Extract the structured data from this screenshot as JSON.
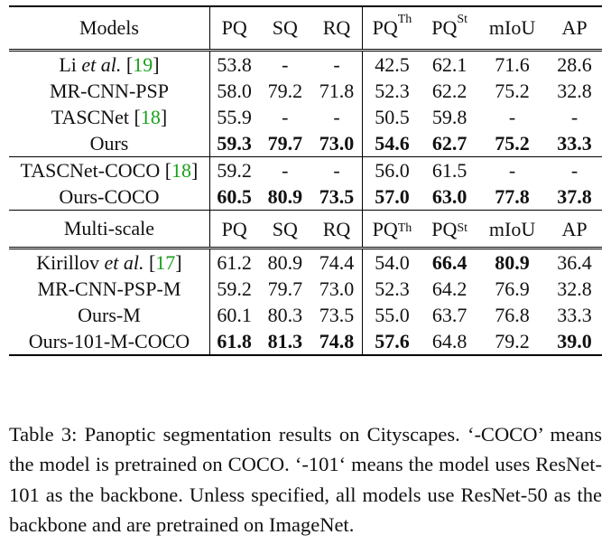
{
  "header": {
    "models": "Models",
    "pq": "PQ",
    "sq": "SQ",
    "rq": "RQ",
    "pq_th": "PQ",
    "th_sup": "Th",
    "pq_st": "PQ",
    "st_sup": "St",
    "miou": "mIoU",
    "ap": "AP"
  },
  "multiscale_header": {
    "models": "Multi-scale",
    "pq": "PQ",
    "sq": "SQ",
    "rq": "RQ",
    "pq_th": "PQ",
    "th_sup": "Th",
    "pq_st": "PQ",
    "st_sup": "St",
    "miou": "mIoU",
    "ap": "AP"
  },
  "rows": {
    "li": {
      "name": "Li",
      "etal": "et al.",
      "ref": "19",
      "pq": "53.8",
      "sq": "-",
      "rq": "-",
      "pq_th": "42.5",
      "pq_st": "62.1",
      "miou": "71.6",
      "ap": "28.6"
    },
    "mrcnnpsp": {
      "name": "MR-CNN-PSP",
      "pq": "58.0",
      "sq": "79.2",
      "rq": "71.8",
      "pq_th": "52.3",
      "pq_st": "62.2",
      "miou": "75.2",
      "ap": "32.8"
    },
    "tascnet": {
      "name": "TASCNet",
      "ref": "18",
      "pq": "55.9",
      "sq": "-",
      "rq": "-",
      "pq_th": "50.5",
      "pq_st": "59.8",
      "miou": "-",
      "ap": "-"
    },
    "ours": {
      "name": "Ours",
      "pq": "59.3",
      "sq": "79.7",
      "rq": "73.0",
      "pq_th": "54.6",
      "pq_st": "62.7",
      "miou": "75.2",
      "ap": "33.3"
    },
    "tascnet_coco": {
      "name": "TASCNet-COCO",
      "ref": "18",
      "pq": "59.2",
      "sq": "-",
      "rq": "-",
      "pq_th": "56.0",
      "pq_st": "61.5",
      "miou": "-",
      "ap": "-"
    },
    "ours_coco": {
      "name": "Ours-COCO",
      "pq": "60.5",
      "sq": "80.9",
      "rq": "73.5",
      "pq_th": "57.0",
      "pq_st": "63.0",
      "miou": "77.8",
      "ap": "37.8"
    },
    "kirillov": {
      "name": "Kirillov",
      "etal": "et al.",
      "ref": "17",
      "pq": "61.2",
      "sq": "80.9",
      "rq": "74.4",
      "pq_th": "54.0",
      "pq_st": "66.4",
      "miou": "80.9",
      "ap": "36.4"
    },
    "mrcnnpsp_m": {
      "name": "MR-CNN-PSP-M",
      "pq": "59.2",
      "sq": "79.7",
      "rq": "73.0",
      "pq_th": "52.3",
      "pq_st": "64.2",
      "miou": "76.9",
      "ap": "32.8"
    },
    "ours_m": {
      "name": "Ours-M",
      "pq": "60.1",
      "sq": "80.3",
      "rq": "73.5",
      "pq_th": "55.0",
      "pq_st": "63.7",
      "miou": "76.8",
      "ap": "33.3"
    },
    "ours_101": {
      "name": "Ours-101-M-COCO",
      "pq": "61.8",
      "sq": "81.3",
      "rq": "74.8",
      "pq_th": "57.6",
      "pq_st": "64.8",
      "miou": "79.2",
      "ap": "39.0"
    }
  },
  "caption": "Table 3: Panoptic segmentation results on Cityscapes. ‘-COCO’ means the model is pretrained on COCO. ‘-101‘ means the model uses ResNet-101 as the backbone. Unless specified, all models use ResNet-50 as the backbone and are pretrained on ImageNet.",
  "colors": {
    "citation": "#19a01a",
    "text": "#111111"
  }
}
